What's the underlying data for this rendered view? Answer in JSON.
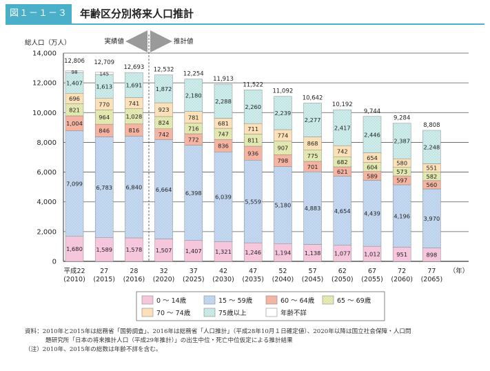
{
  "figure": {
    "label": "図１－１－３",
    "title": "年齢区分別将来人口推計",
    "accent": "#4ab0c9"
  },
  "chart_data": {
    "type": "bar",
    "stacked": true,
    "ylabel": "総人口（万人）",
    "year_unit": "（年）",
    "ylim": [
      0,
      14000
    ],
    "y_ticks": [
      0,
      2000,
      4000,
      6000,
      8000,
      10000,
      12000,
      14000
    ],
    "y_tick_labels": [
      "0",
      "2,000",
      "4,000",
      "6,000",
      "8,000",
      "10,000",
      "12,000",
      "14,000"
    ],
    "section_labels": {
      "actual": "実績値",
      "projected": "推計値"
    },
    "actual_count": 3,
    "categories": [
      "平成22",
      "27",
      "28",
      "32",
      "37",
      "42",
      "47",
      "52",
      "57",
      "62",
      "67",
      "72",
      "77"
    ],
    "categories_west": [
      "(2010)",
      "(2015)",
      "(2016)",
      "(2020)",
      "(2025)",
      "(2030)",
      "(2035)",
      "(2040)",
      "(2045)",
      "(2050)",
      "(2055)",
      "(2060)",
      "(2065)"
    ],
    "totals": [
      "12,806",
      "12,709",
      "12,693",
      "12,532",
      "12,254",
      "11,913",
      "11,522",
      "11,092",
      "10,642",
      "10,192",
      "9,744",
      "9,284",
      "8,808"
    ],
    "total_values": [
      12806,
      12709,
      12693,
      12532,
      12254,
      11913,
      11522,
      11092,
      10642,
      10192,
      9744,
      9284,
      8808
    ],
    "series": [
      {
        "name": "0 〜 14歳",
        "color": "#f6c6dc",
        "pattern": "none",
        "values": [
          1680,
          1589,
          1578,
          1507,
          1407,
          1321,
          1246,
          1194,
          1138,
          1077,
          1012,
          951,
          898
        ],
        "labels": [
          "1,680",
          "1,589",
          "1,578",
          "1,507",
          "1,407",
          "1,321",
          "1,246",
          "1,194",
          "1,138",
          "1,077",
          "1,012",
          "951",
          "898"
        ]
      },
      {
        "name": "15 〜 59歳",
        "color": "#c5daf1",
        "pattern": "dots",
        "values": [
          7099,
          6783,
          6840,
          6664,
          6398,
          6039,
          5559,
          5180,
          4883,
          4654,
          4439,
          4196,
          3970
        ],
        "labels": [
          "7,099",
          "6,783",
          "6,840",
          "6,664",
          "6,398",
          "6,039",
          "5,559",
          "5,180",
          "4,883",
          "4,654",
          "4,439",
          "4,196",
          "3,970"
        ]
      },
      {
        "name": "60 〜 64歳",
        "color": "#f5b3a1",
        "pattern": "none",
        "values": [
          1004,
          846,
          816,
          742,
          772,
          836,
          936,
          798,
          701,
          621,
          589,
          597,
          560
        ],
        "labels": [
          "1,004",
          "846",
          "816",
          "742",
          "772",
          "836",
          "936",
          "798",
          "701",
          "621",
          "589",
          "597",
          "560"
        ]
      },
      {
        "name": "65 〜 69歳",
        "color": "#e9edaf",
        "pattern": "dots",
        "values": [
          821,
          964,
          1028,
          824,
          716,
          747,
          811,
          907,
          775,
          682,
          604,
          573,
          582
        ],
        "labels": [
          "821",
          "964",
          "1,028",
          "824",
          "716",
          "747",
          "811",
          "907",
          "775",
          "682",
          "604",
          "573",
          "582"
        ]
      },
      {
        "name": "70 〜 74歳",
        "color": "#fbe0b8",
        "pattern": "none",
        "values": [
          696,
          770,
          741,
          923,
          781,
          681,
          711,
          774,
          868,
          742,
          654,
          580,
          551
        ],
        "labels": [
          "696",
          "770",
          "741",
          "923",
          "781",
          "681",
          "711",
          "774",
          "868",
          "742",
          "654",
          "580",
          "551"
        ]
      },
      {
        "name": "75歳以上",
        "color": "#cdeee9",
        "pattern": "dots",
        "values": [
          1407,
          1613,
          1691,
          1872,
          2180,
          2288,
          2260,
          2239,
          2277,
          2417,
          2446,
          2387,
          2248
        ],
        "labels": [
          "1,407",
          "1,613",
          "1,691",
          "1,872",
          "2,180",
          "2,288",
          "2,260",
          "2,239",
          "2,277",
          "2,417",
          "2,446",
          "2,387",
          "2,248"
        ]
      },
      {
        "name": "年齢不詳",
        "color": "#ffffff",
        "pattern": "none",
        "values": [
          98,
          145,
          0,
          0,
          0,
          0,
          0,
          0,
          0,
          0,
          0,
          0,
          0
        ],
        "labels": [
          "98",
          "145",
          "",
          "",
          "",
          "",
          "",
          "",
          "",
          "",
          "",
          "",
          ""
        ]
      }
    ],
    "legend_order": [
      "0 〜 14歳",
      "15 〜 59歳",
      "60 〜 64歳",
      "65 〜 69歳",
      "70 〜 74歳",
      "75歳以上",
      "年齢不詳"
    ],
    "legend_placement": "bottom-right"
  },
  "notes": [
    "資料：2010年と2015年は総務省「国勢調査」、2016年は総務省「人口推計」（平成28年10月１日確定値）、2020年以降は国立社会保障・人口問",
    "題研究所「日本の将来推計人口（平成29年推計）」の出生中位・死亡中位仮定による推計結果",
    "（注）2010年、2015年の総数は年齢不詳を含む。"
  ]
}
